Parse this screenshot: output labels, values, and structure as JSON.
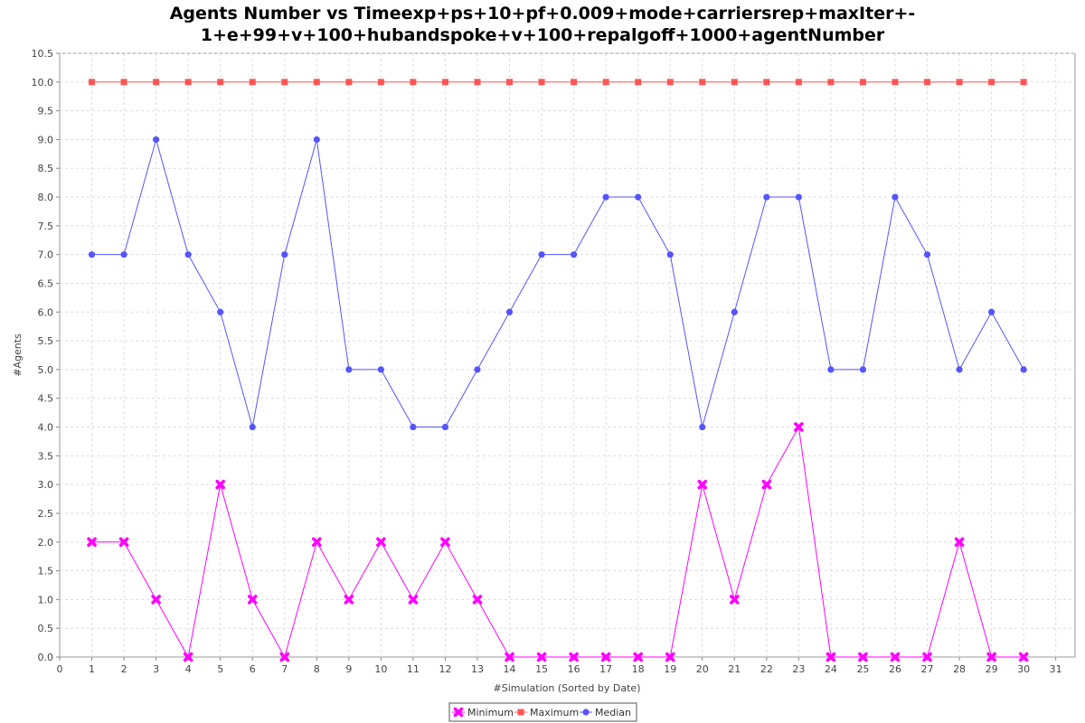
{
  "chart_data": {
    "type": "line",
    "title_lines": [
      "Agents Number vs Timeexp+ps+10+pf+0.009+mode+carriersrep+maxIter+-",
      "1+e+99+v+100+hubandspoke+v+100+repalgoff+1000+agentNumber"
    ],
    "xlabel": "#Simulation (Sorted by Date)",
    "ylabel": "#Agents",
    "xlim": [
      0,
      31.6
    ],
    "ylim": [
      0,
      10.5
    ],
    "x_ticks": [
      0,
      1,
      2,
      3,
      4,
      5,
      6,
      7,
      8,
      9,
      10,
      11,
      12,
      13,
      14,
      15,
      16,
      17,
      18,
      19,
      20,
      21,
      22,
      23,
      24,
      25,
      26,
      27,
      28,
      29,
      30,
      31
    ],
    "y_ticks": [
      0,
      0.5,
      1,
      1.5,
      2,
      2.5,
      3,
      3.5,
      4,
      4.5,
      5,
      5.5,
      6,
      6.5,
      7,
      7.5,
      8,
      8.5,
      9,
      9.5,
      10,
      10.5
    ],
    "x_tick_labels": [
      "0",
      "1",
      "2",
      "3",
      "4",
      "5",
      "6",
      "7",
      "8",
      "9",
      "10",
      "11",
      "12",
      "13",
      "14",
      "15",
      "16",
      "17",
      "18",
      "19",
      "20",
      "21",
      "22",
      "23",
      "24",
      "25",
      "26",
      "27",
      "28",
      "29",
      "30",
      "31"
    ],
    "y_tick_labels": [
      "0.0",
      "0.5",
      "1.0",
      "1.5",
      "2.0",
      "2.5",
      "3.0",
      "3.5",
      "4.0",
      "4.5",
      "5.0",
      "5.5",
      "6.0",
      "6.5",
      "7.0",
      "7.5",
      "8.0",
      "8.5",
      "9.0",
      "9.5",
      "10.0",
      "10.5"
    ],
    "grid": true,
    "legend_position": "bottom-center",
    "x": [
      1,
      2,
      3,
      4,
      5,
      6,
      7,
      8,
      9,
      10,
      11,
      12,
      13,
      14,
      15,
      16,
      17,
      18,
      19,
      20,
      21,
      22,
      23,
      24,
      25,
      26,
      27,
      28,
      29,
      30
    ],
    "series": [
      {
        "name": "Minimum",
        "color": "#ff00ff",
        "marker": "x",
        "values": [
          2,
          2,
          1,
          0,
          3,
          1,
          0,
          2,
          1,
          2,
          1,
          2,
          1,
          0,
          0,
          0,
          0,
          0,
          0,
          3,
          1,
          3,
          4,
          0,
          0,
          0,
          0,
          2,
          0,
          0
        ]
      },
      {
        "name": "Maximum",
        "color": "#ff5555",
        "marker": "square",
        "values": [
          10,
          10,
          10,
          10,
          10,
          10,
          10,
          10,
          10,
          10,
          10,
          10,
          10,
          10,
          10,
          10,
          10,
          10,
          10,
          10,
          10,
          10,
          10,
          10,
          10,
          10,
          10,
          10,
          10,
          10
        ]
      },
      {
        "name": "Median",
        "color": "#5555ff",
        "marker": "circle",
        "values": [
          7,
          7,
          9,
          7,
          6,
          4,
          7,
          9,
          5,
          5,
          4,
          4,
          5,
          6,
          7,
          7,
          8,
          8,
          7,
          4,
          6,
          8,
          8,
          5,
          5,
          8,
          7,
          5,
          6,
          5
        ]
      }
    ]
  }
}
